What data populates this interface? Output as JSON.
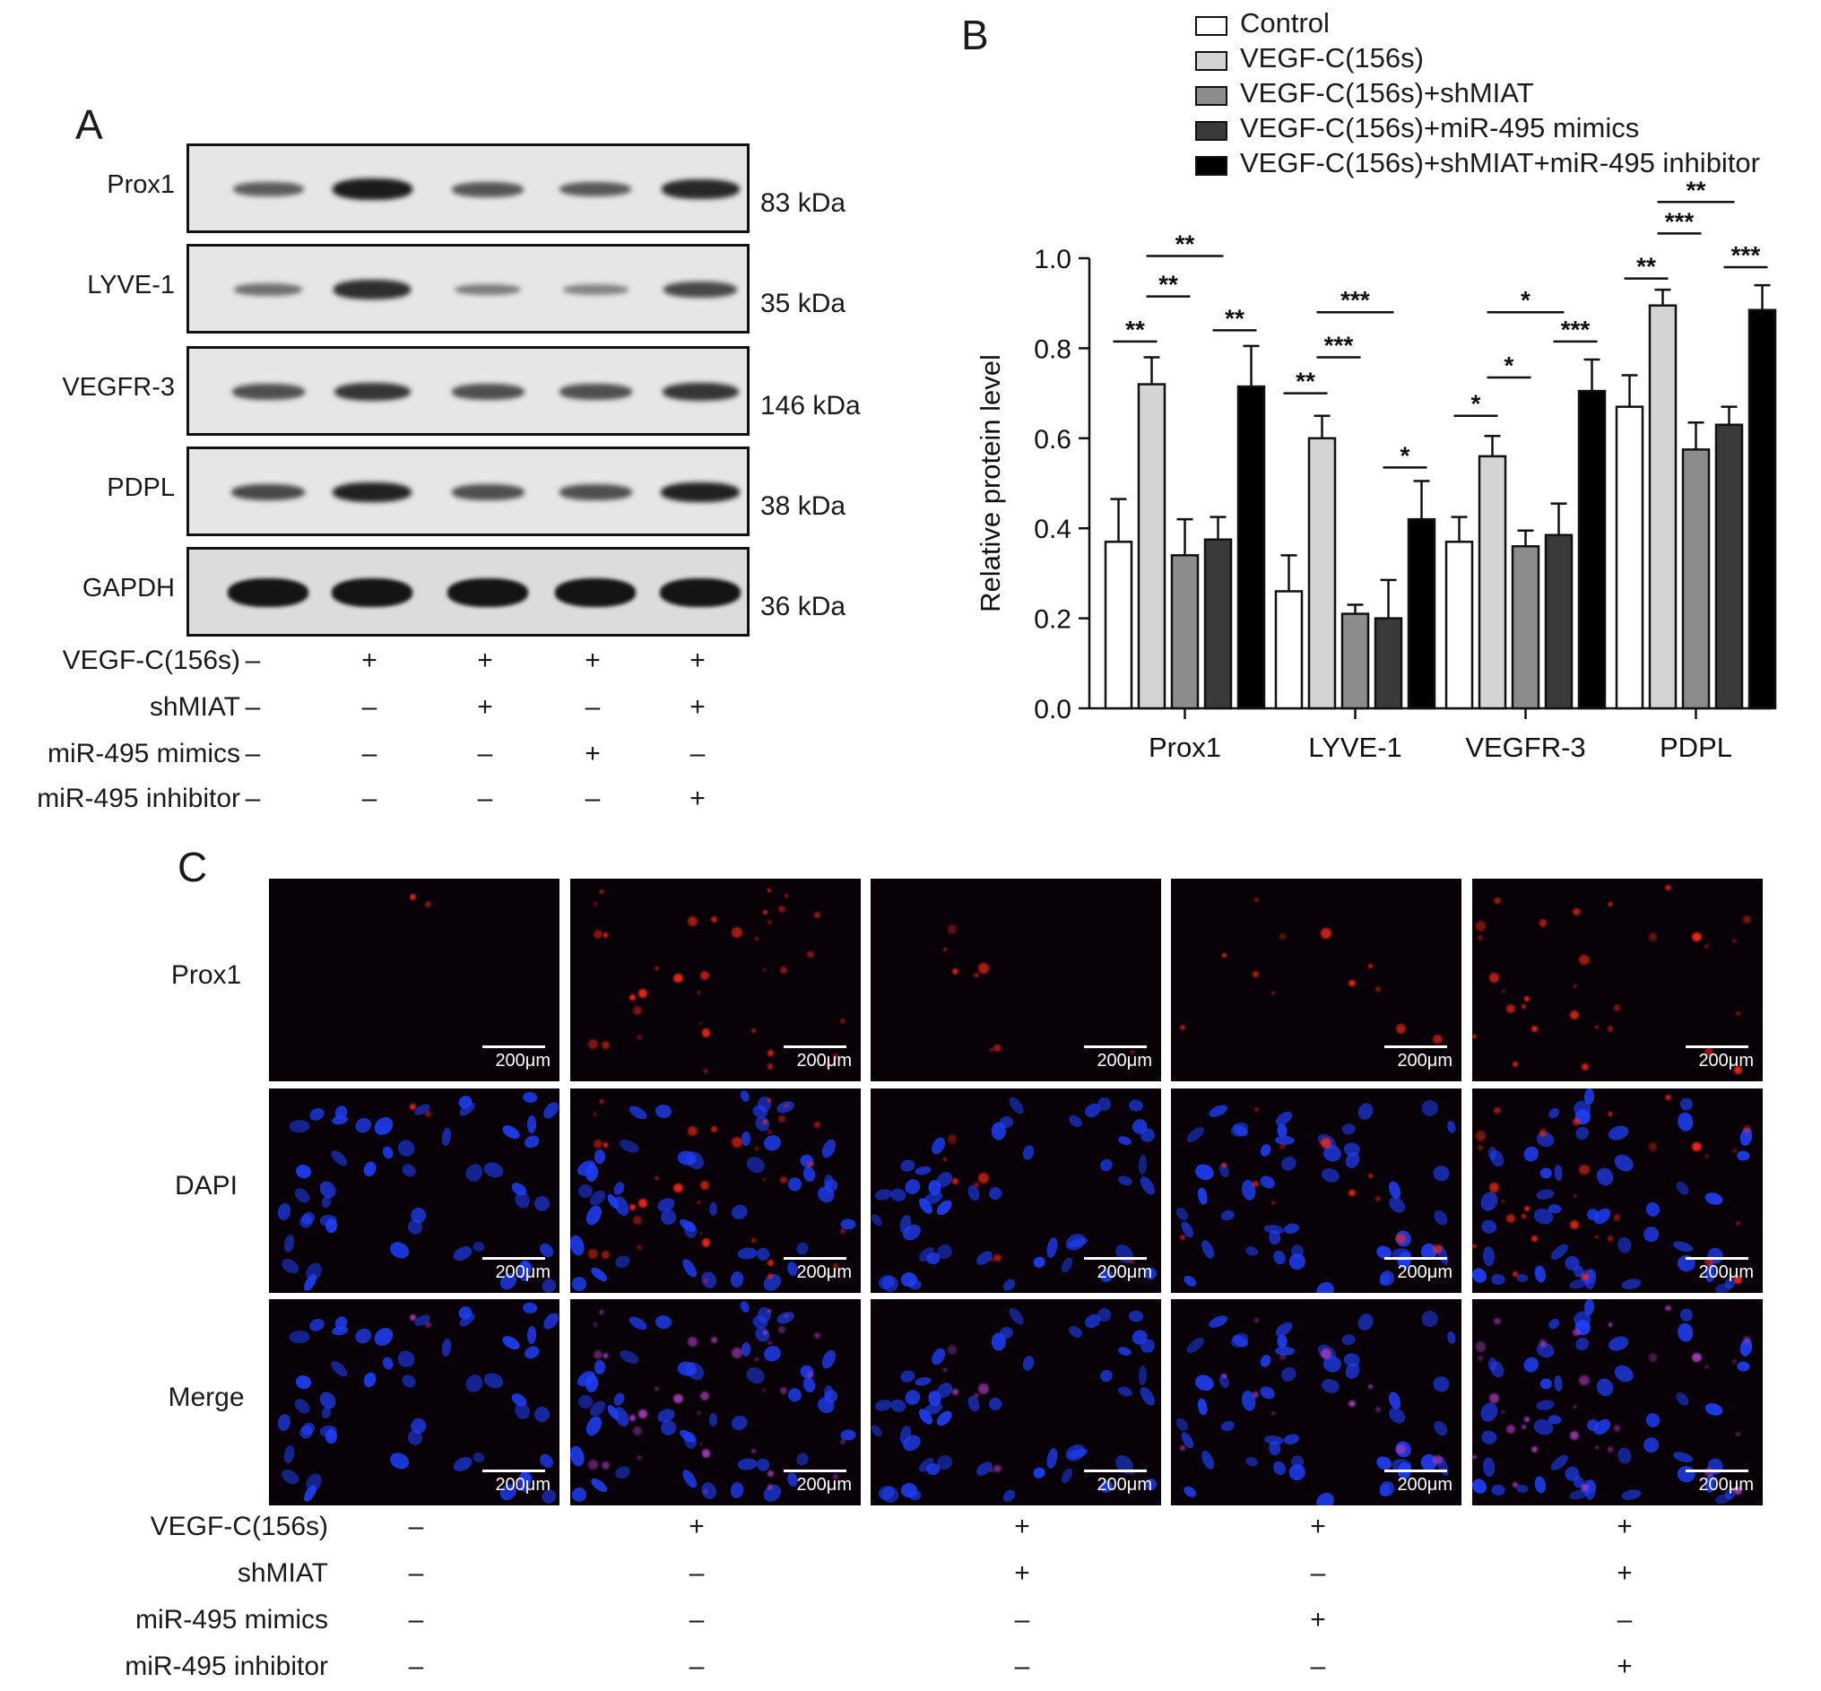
{
  "panels": {
    "a": "A",
    "b": "B",
    "c": "C"
  },
  "western_blot": {
    "rows": [
      {
        "protein": "Prox1",
        "size": "83 kDa",
        "intensity": [
          0.45,
          0.95,
          0.5,
          0.48,
          0.85
        ]
      },
      {
        "protein": "LYVE-1",
        "size": "35 kDa",
        "intensity": [
          0.3,
          0.8,
          0.2,
          0.15,
          0.6
        ]
      },
      {
        "protein": "VEGFR-3",
        "size": "146 kDa",
        "intensity": [
          0.55,
          0.75,
          0.55,
          0.55,
          0.75
        ]
      },
      {
        "protein": "PDPL",
        "size": "38 kDa",
        "intensity": [
          0.6,
          0.9,
          0.55,
          0.55,
          0.9
        ]
      },
      {
        "protein": "GAPDH",
        "size": "36 kDa",
        "intensity": [
          1,
          1,
          1,
          1,
          1
        ]
      }
    ],
    "treatments": [
      {
        "label": "VEGF-C(156s)",
        "signs": [
          "–",
          "+",
          "+",
          "+",
          "+"
        ]
      },
      {
        "label": "shMIAT",
        "signs": [
          "–",
          "–",
          "+",
          "–",
          "+"
        ]
      },
      {
        "label": "miR-495 mimics",
        "signs": [
          "–",
          "–",
          "–",
          "+",
          "–"
        ]
      },
      {
        "label": "miR-495 inhibitor",
        "signs": [
          "–",
          "–",
          "–",
          "–",
          "+"
        ]
      }
    ]
  },
  "chart_data": {
    "type": "bar",
    "ylabel": "Relative protein level",
    "ylim": [
      0,
      1.0
    ],
    "yticks": [
      "0.0",
      "0.2",
      "0.4",
      "0.6",
      "0.8",
      "1.0"
    ],
    "categories": [
      "Prox1",
      "LYVE-1",
      "VEGFR-3",
      "PDPL"
    ],
    "legend_position": "top-right",
    "series": [
      {
        "name": "Control",
        "color": "#ffffff",
        "values": [
          0.37,
          0.26,
          0.37,
          0.67
        ],
        "errors": [
          0.095,
          0.08,
          0.055,
          0.07
        ]
      },
      {
        "name": "VEGF-C(156s)",
        "color": "#d4d4d4",
        "values": [
          0.72,
          0.6,
          0.56,
          0.895
        ],
        "errors": [
          0.06,
          0.05,
          0.045,
          0.035
        ]
      },
      {
        "name": "VEGF-C(156s)+shMIAT",
        "color": "#8c8c8c",
        "values": [
          0.34,
          0.21,
          0.36,
          0.575
        ],
        "errors": [
          0.08,
          0.02,
          0.035,
          0.06
        ]
      },
      {
        "name": "VEGF-C(156s)+miR-495 mimics",
        "color": "#3a3a3a",
        "values": [
          0.375,
          0.2,
          0.385,
          0.63
        ],
        "errors": [
          0.05,
          0.085,
          0.07,
          0.04
        ]
      },
      {
        "name": "VEGF-C(156s)+shMIAT+miR-495 inhibitor",
        "color": "#000000",
        "values": [
          0.715,
          0.42,
          0.705,
          0.885
        ],
        "errors": [
          0.09,
          0.085,
          0.07,
          0.055
        ]
      }
    ],
    "significance": [
      {
        "group": 0,
        "from": 0,
        "to": 1,
        "label": "**",
        "level": 0.815
      },
      {
        "group": 0,
        "from": 1,
        "to": 2,
        "label": "**",
        "level": 0.915
      },
      {
        "group": 0,
        "from": 1,
        "to": 3,
        "label": "**",
        "level": 1.005
      },
      {
        "group": 0,
        "from": 3,
        "to": 4,
        "label": "**",
        "level": 0.84
      },
      {
        "group": 1,
        "from": 0,
        "to": 1,
        "label": "**",
        "level": 0.7
      },
      {
        "group": 1,
        "from": 1,
        "to": 2,
        "label": "***",
        "level": 0.78
      },
      {
        "group": 1,
        "from": 1,
        "to": 3,
        "label": "***",
        "level": 0.88
      },
      {
        "group": 1,
        "from": 3,
        "to": 4,
        "label": "*",
        "level": 0.535
      },
      {
        "group": 2,
        "from": 0,
        "to": 1,
        "label": "*",
        "level": 0.65
      },
      {
        "group": 2,
        "from": 1,
        "to": 2,
        "label": "*",
        "level": 0.735
      },
      {
        "group": 2,
        "from": 1,
        "to": 3,
        "label": "*",
        "level": 0.88
      },
      {
        "group": 2,
        "from": 3,
        "to": 4,
        "label": "***",
        "level": 0.815
      },
      {
        "group": 3,
        "from": 0,
        "to": 1,
        "label": "**",
        "level": 0.955
      },
      {
        "group": 3,
        "from": 1,
        "to": 2,
        "label": "***",
        "level": 1.055
      },
      {
        "group": 3,
        "from": 1,
        "to": 3,
        "label": "**",
        "level": 1.125
      },
      {
        "group": 3,
        "from": 3,
        "to": 4,
        "label": "***",
        "level": 0.98
      }
    ]
  },
  "microscopy": {
    "rows": [
      "Prox1",
      "DAPI",
      "Merge"
    ],
    "scale_label": "200μm",
    "prox1_signal": [
      0.05,
      0.9,
      0.2,
      0.3,
      0.75
    ],
    "treatments": [
      {
        "label": "VEGF-C(156s)",
        "signs": [
          "–",
          "+",
          "+",
          "+",
          "+"
        ]
      },
      {
        "label": "shMIAT",
        "signs": [
          "–",
          "–",
          "+",
          "–",
          "+"
        ]
      },
      {
        "label": "miR-495 mimics",
        "signs": [
          "–",
          "–",
          "–",
          "+",
          "–"
        ]
      },
      {
        "label": "miR-495 inhibitor",
        "signs": [
          "–",
          "–",
          "–",
          "–",
          "+"
        ]
      }
    ]
  },
  "colors": {
    "red_stain": "#ff2a1a",
    "blue_stain": "#2040ff",
    "merge_purple": "#b040c0"
  }
}
